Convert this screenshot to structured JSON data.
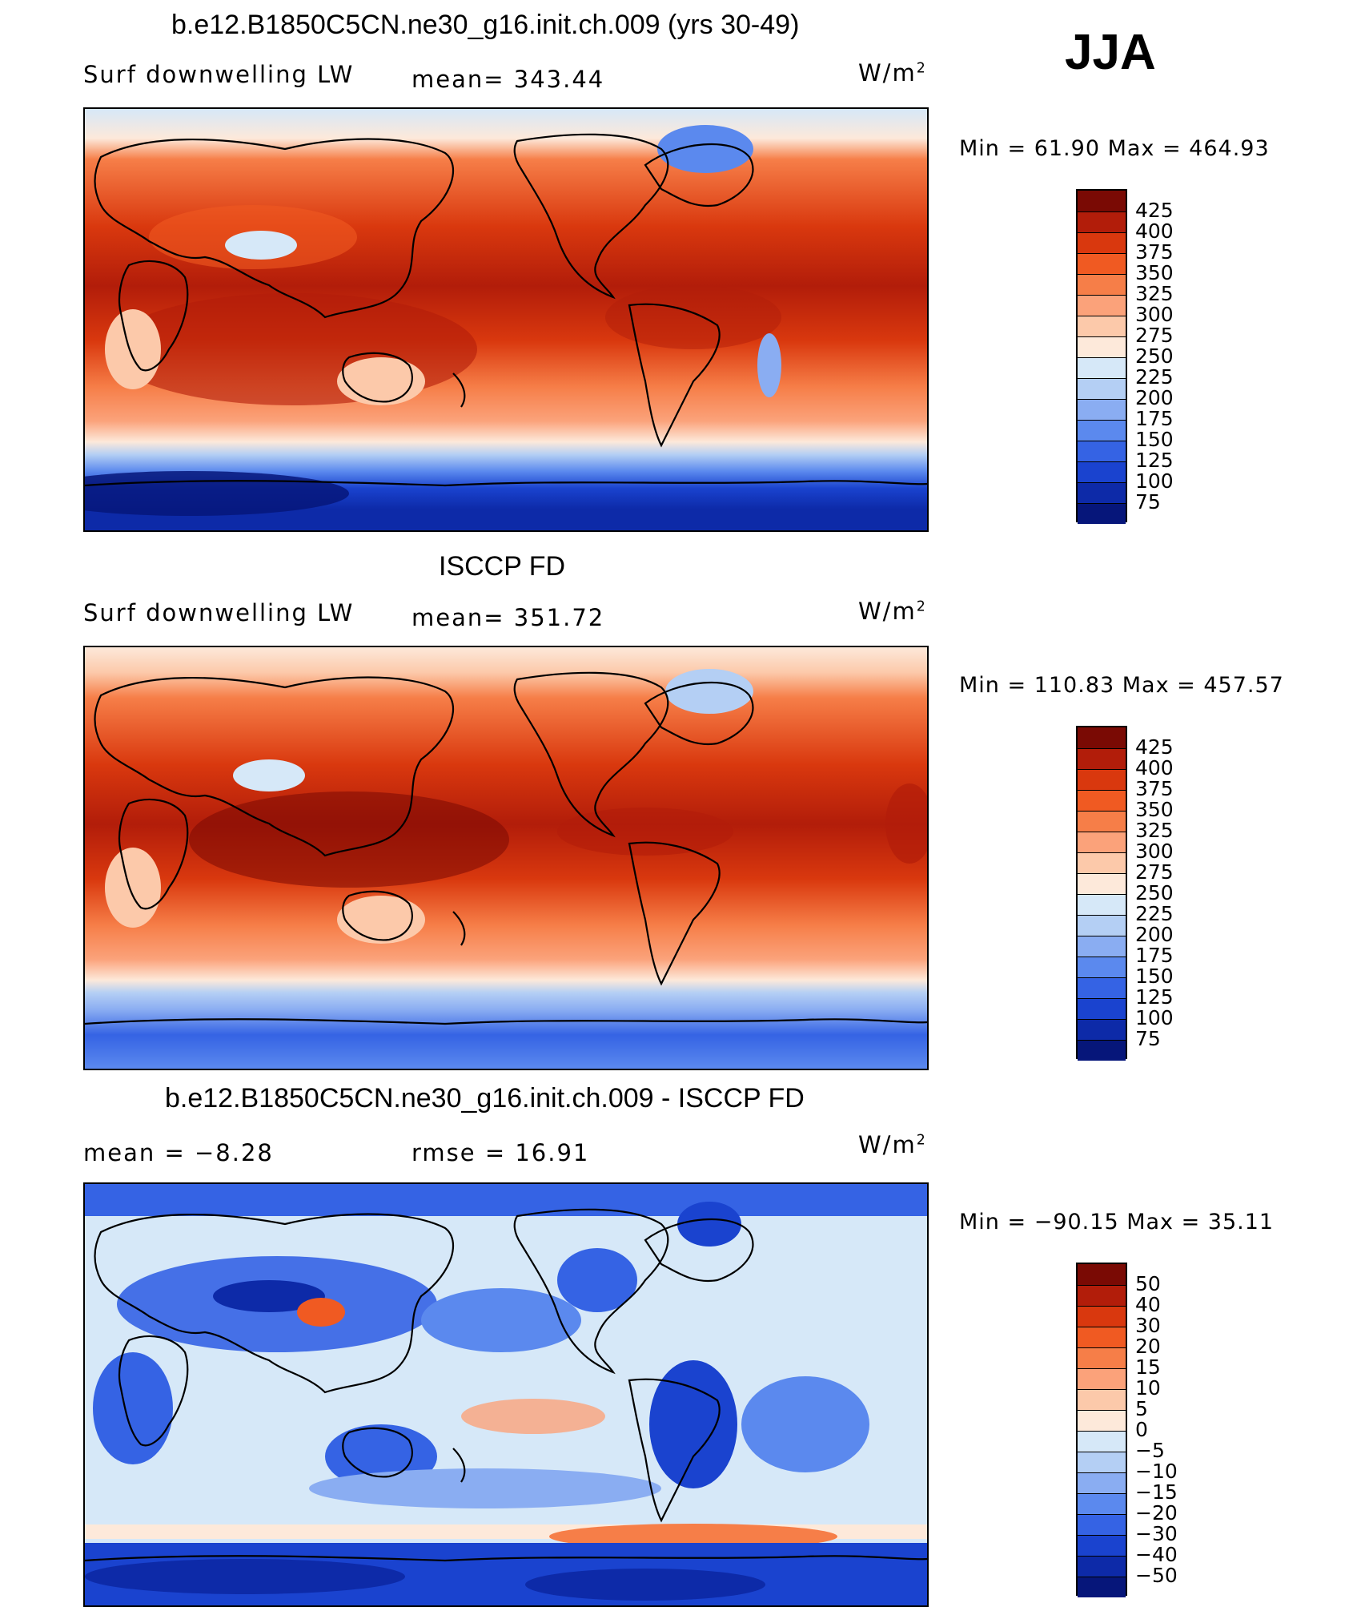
{
  "season": "JJA",
  "panels": [
    {
      "title": "b.e12.B1850C5CN.ne30_g16.init.ch.009 (yrs 30-49)",
      "left_label": "Surf downwelling LW",
      "mean_label": "mean=  343.44",
      "units": "W/m",
      "units_sup": "2",
      "minmax": "Min =   61.90 Max =  464.93",
      "colorbar_levels": [
        "425",
        "400",
        "375",
        "350",
        "325",
        "300",
        "275",
        "250",
        "225",
        "200",
        "175",
        "150",
        "125",
        "100",
        "75"
      ],
      "colorbar_colors": [
        "#7a0a04",
        "#b21d0a",
        "#d9380e",
        "#f05a22",
        "#f67e48",
        "#fba27a",
        "#fcc9aa",
        "#fde9da",
        "#d6e8f8",
        "#b4cff4",
        "#8aadf2",
        "#5b89ee",
        "#3563e4",
        "#1a43cf",
        "#0d2aa8",
        "#06167a"
      ]
    },
    {
      "title": "ISCCP FD",
      "left_label": "Surf downwelling LW",
      "mean_label": "mean=  351.72",
      "units": "W/m",
      "units_sup": "2",
      "minmax": "Min =  110.83 Max =  457.57",
      "colorbar_levels": [
        "425",
        "400",
        "375",
        "350",
        "325",
        "300",
        "275",
        "250",
        "225",
        "200",
        "175",
        "150",
        "125",
        "100",
        "75"
      ],
      "colorbar_colors": [
        "#7a0a04",
        "#b21d0a",
        "#d9380e",
        "#f05a22",
        "#f67e48",
        "#fba27a",
        "#fcc9aa",
        "#fde9da",
        "#d6e8f8",
        "#b4cff4",
        "#8aadf2",
        "#5b89ee",
        "#3563e4",
        "#1a43cf",
        "#0d2aa8",
        "#06167a"
      ]
    },
    {
      "title": "b.e12.B1850C5CN.ne30_g16.init.ch.009 - ISCCP FD",
      "left_label": "mean =   −8.28",
      "mean_label": "rmse =   16.91",
      "units": "W/m",
      "units_sup": "2",
      "minmax": "Min = −90.15 Max =   35.11",
      "colorbar_levels": [
        "50",
        "40",
        "30",
        "20",
        "15",
        "10",
        "5",
        "0",
        "−5",
        "−10",
        "−15",
        "−20",
        "−30",
        "−40",
        "−50"
      ],
      "colorbar_colors": [
        "#7a0a04",
        "#b21d0a",
        "#d9380e",
        "#f05a22",
        "#f67e48",
        "#fba27a",
        "#fcc9aa",
        "#fde9da",
        "#d6e8f8",
        "#b4cff4",
        "#8aadf2",
        "#5b89ee",
        "#3563e4",
        "#1a43cf",
        "#0d2aa8",
        "#06167a"
      ]
    }
  ]
}
